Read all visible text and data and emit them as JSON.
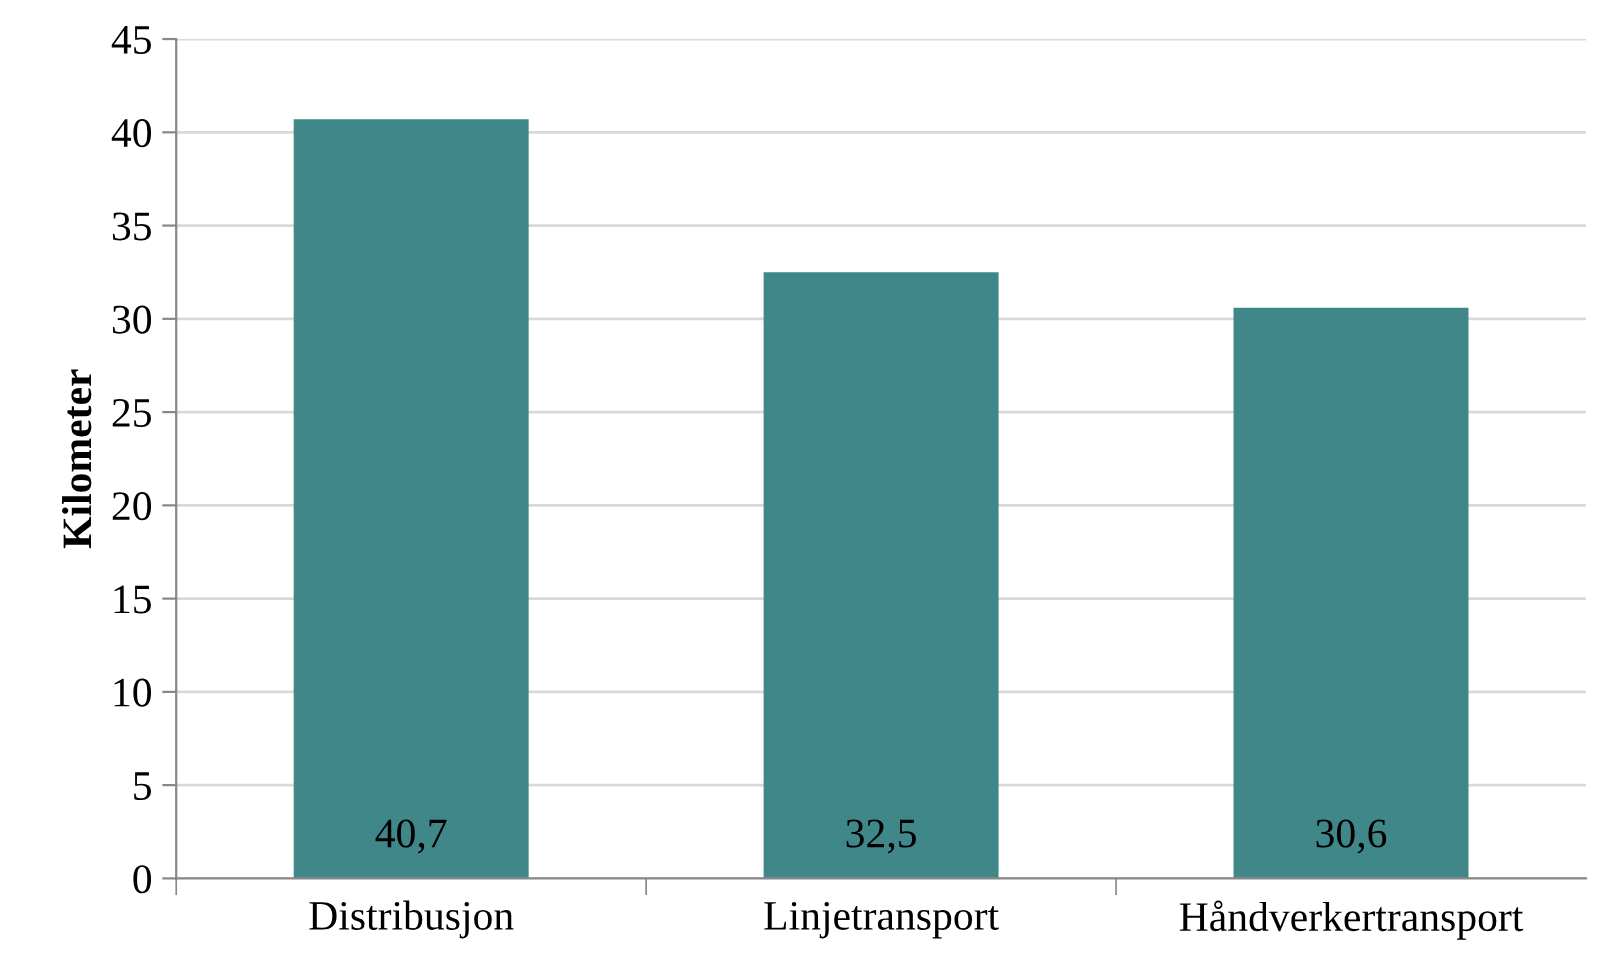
{
  "chart_data": {
    "type": "bar",
    "ylabel": "Kilometer",
    "categories": [
      "Distribusjon",
      "Linjetransport",
      "Håndverkertransport"
    ],
    "values": [
      40.7,
      32.5,
      30.6
    ],
    "color": "#40878a",
    "value_labels": [
      "40,7",
      "32,5",
      "30,6"
    ],
    "ylim": [
      0,
      45
    ],
    "yticks": [
      0,
      5,
      10,
      15,
      20,
      25,
      30,
      35,
      40,
      45
    ],
    "grid": "y",
    "legend": false
  }
}
